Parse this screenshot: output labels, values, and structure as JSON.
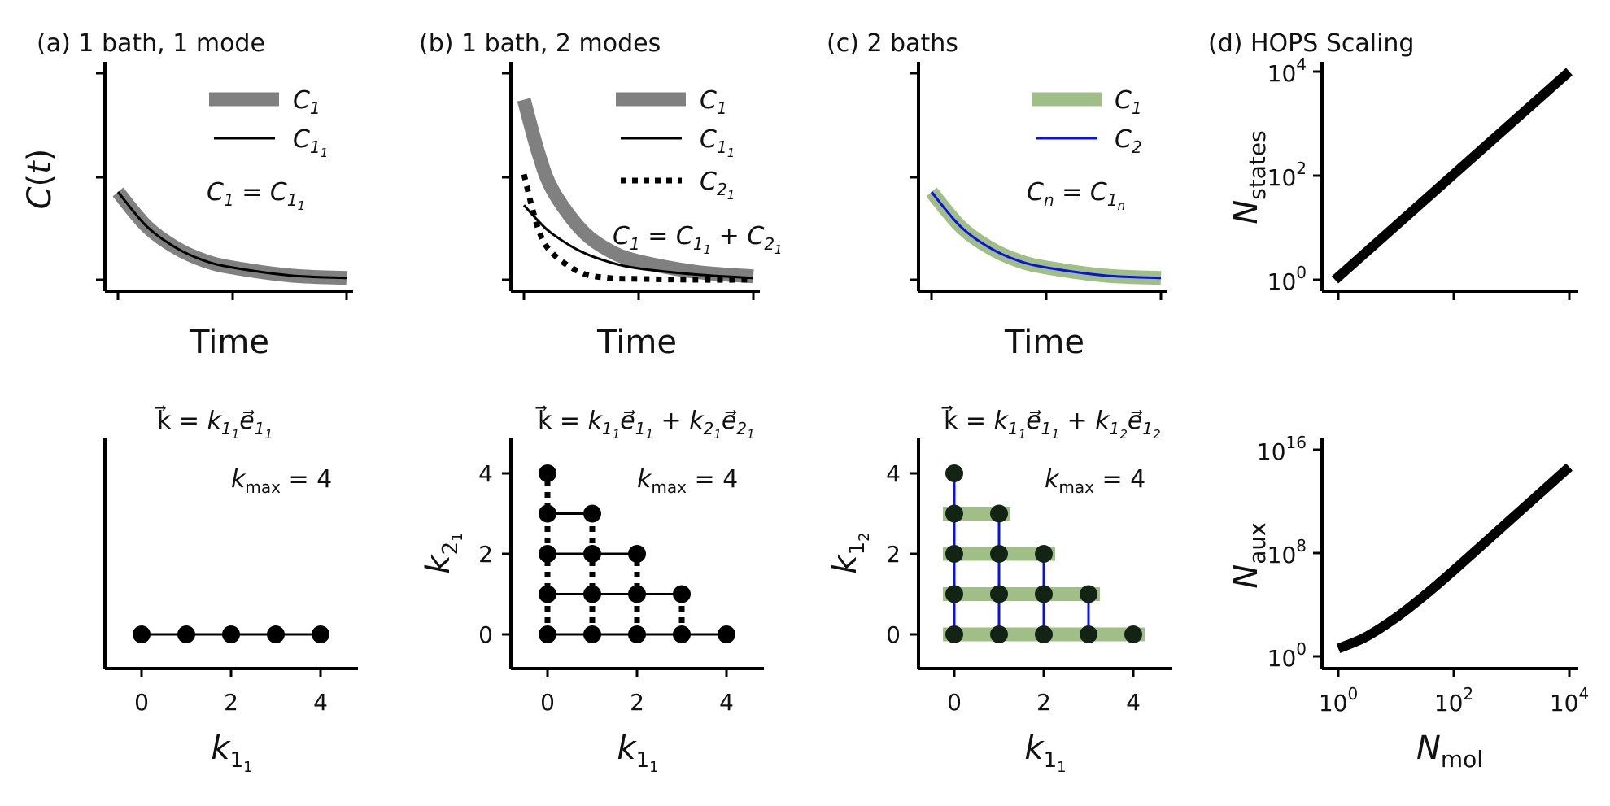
{
  "chart_data": [
    {
      "id": "a_top",
      "type": "line",
      "title": "(a) 1 bath, 1 mode",
      "xlabel": "Time",
      "ylabel": "C(t)",
      "series": [
        {
          "name": "C_1",
          "color": "#808080",
          "style": "thick",
          "x": [
            0,
            0.5,
            1,
            1.5,
            2,
            3,
            4
          ],
          "values": [
            1.0,
            0.61,
            0.37,
            0.22,
            0.14,
            0.05,
            0.02
          ]
        },
        {
          "name": "C_1_1",
          "color": "#000000",
          "style": "solid",
          "x": [
            0,
            0.5,
            1,
            1.5,
            2,
            3,
            4
          ],
          "values": [
            1.0,
            0.61,
            0.37,
            0.22,
            0.14,
            0.05,
            0.02
          ]
        }
      ],
      "annotation": "C_1 = C_1_1"
    },
    {
      "id": "b_top",
      "type": "line",
      "title": "(b) 1 bath, 2 modes",
      "xlabel": "Time",
      "series": [
        {
          "name": "C_1",
          "color": "#808080",
          "style": "thick",
          "x": [
            0,
            0.25,
            0.5,
            1,
            1.5,
            2,
            3,
            4
          ],
          "values": [
            2.05,
            1.45,
            1.02,
            0.57,
            0.33,
            0.21,
            0.09,
            0.04
          ]
        },
        {
          "name": "C_1_1",
          "color": "#000000",
          "style": "solid",
          "x": [
            0,
            0.25,
            0.5,
            1,
            1.5,
            2,
            3,
            4
          ],
          "values": [
            0.85,
            0.67,
            0.52,
            0.32,
            0.2,
            0.13,
            0.06,
            0.02
          ]
        },
        {
          "name": "C_2_1",
          "color": "#000000",
          "style": "dotted",
          "x": [
            0,
            0.25,
            0.5,
            1,
            1.5,
            2,
            3,
            4
          ],
          "values": [
            1.2,
            0.58,
            0.3,
            0.08,
            0.02,
            0.01,
            0.0,
            0.0
          ]
        }
      ],
      "annotation": "C_1 = C_1_1 + C_2_1"
    },
    {
      "id": "c_top",
      "type": "line",
      "title": "(c) 2 baths",
      "xlabel": "Time",
      "series": [
        {
          "name": "C_1",
          "color": "#9fbf86",
          "style": "thick",
          "x": [
            0,
            0.5,
            1,
            1.5,
            2,
            3,
            4
          ],
          "values": [
            1.0,
            0.61,
            0.37,
            0.22,
            0.14,
            0.05,
            0.02
          ]
        },
        {
          "name": "C_2",
          "color": "#0a10e6",
          "style": "solid",
          "x": [
            0,
            0.5,
            1,
            1.5,
            2,
            3,
            4
          ],
          "values": [
            1.0,
            0.61,
            0.37,
            0.22,
            0.14,
            0.05,
            0.02
          ]
        }
      ],
      "annotation": "C_n = C_1_n"
    },
    {
      "id": "d_top",
      "type": "line",
      "title": "(d) HOPS Scaling",
      "ylabel": "N_states",
      "xscale": "log",
      "yscale": "log",
      "xlim": [
        1,
        10000
      ],
      "ylim": [
        1,
        10000
      ],
      "yticks": [
        1,
        100,
        10000
      ],
      "ytick_labels": [
        "10^0",
        "10^2",
        "10^4"
      ],
      "series": [
        {
          "name": "",
          "color": "#000000",
          "x": [
            1,
            10,
            100,
            1000,
            10000
          ],
          "values": [
            1,
            10,
            100,
            1000,
            10000
          ]
        }
      ]
    },
    {
      "id": "a_bot",
      "type": "scatter",
      "title": "k = k_1_1 e_1_1",
      "xlabel": "k_1_1",
      "xticks": [
        0,
        2,
        4
      ],
      "annotation": "k_max = 4",
      "points": [
        [
          0,
          0
        ],
        [
          1,
          0
        ],
        [
          2,
          0
        ],
        [
          3,
          0
        ],
        [
          4,
          0
        ]
      ]
    },
    {
      "id": "b_bot",
      "type": "scatter",
      "title": "k = k_1_1 e_1_1 + k_2_1 e_2_1",
      "xlabel": "k_1_1",
      "ylabel": "k_2_1",
      "xticks": [
        0,
        2,
        4
      ],
      "yticks": [
        0,
        2,
        4
      ],
      "annotation": "k_max = 4",
      "points": [
        [
          0,
          0
        ],
        [
          1,
          0
        ],
        [
          2,
          0
        ],
        [
          3,
          0
        ],
        [
          4,
          0
        ],
        [
          0,
          1
        ],
        [
          1,
          1
        ],
        [
          2,
          1
        ],
        [
          3,
          1
        ],
        [
          0,
          2
        ],
        [
          1,
          2
        ],
        [
          2,
          2
        ],
        [
          0,
          3
        ],
        [
          1,
          3
        ],
        [
          0,
          4
        ]
      ]
    },
    {
      "id": "c_bot",
      "type": "scatter",
      "title": "k = k_1_1 e_1_1 + k_1_2 e_1_2",
      "xlabel": "k_1_1",
      "ylabel": "k_1_2",
      "xticks": [
        0,
        2,
        4
      ],
      "yticks": [
        0,
        2,
        4
      ],
      "annotation": "k_max = 4",
      "points": [
        [
          0,
          0
        ],
        [
          1,
          0
        ],
        [
          2,
          0
        ],
        [
          3,
          0
        ],
        [
          4,
          0
        ],
        [
          0,
          1
        ],
        [
          1,
          1
        ],
        [
          2,
          1
        ],
        [
          3,
          1
        ],
        [
          0,
          2
        ],
        [
          1,
          2
        ],
        [
          2,
          2
        ],
        [
          0,
          3
        ],
        [
          1,
          3
        ],
        [
          0,
          4
        ]
      ]
    },
    {
      "id": "d_bot",
      "type": "line",
      "xlabel": "N_mol",
      "ylabel": "N_aux",
      "xscale": "log",
      "yscale": "log",
      "xticks": [
        1,
        100,
        10000
      ],
      "xtick_labels": [
        "10^0",
        "10^2",
        "10^4"
      ],
      "yticks": [
        1,
        100000000,
        10000000000000000
      ],
      "ytick_labels": [
        "10^0",
        "10^8",
        "10^16"
      ],
      "series": [
        {
          "name": "",
          "color": "#000000",
          "x": [
            1,
            3,
            10,
            30,
            100,
            1000,
            10000
          ],
          "values": [
            4,
            32,
            1000,
            46000,
            4600000,
            46000000000.0,
            460000000000000.0
          ]
        }
      ]
    }
  ]
}
